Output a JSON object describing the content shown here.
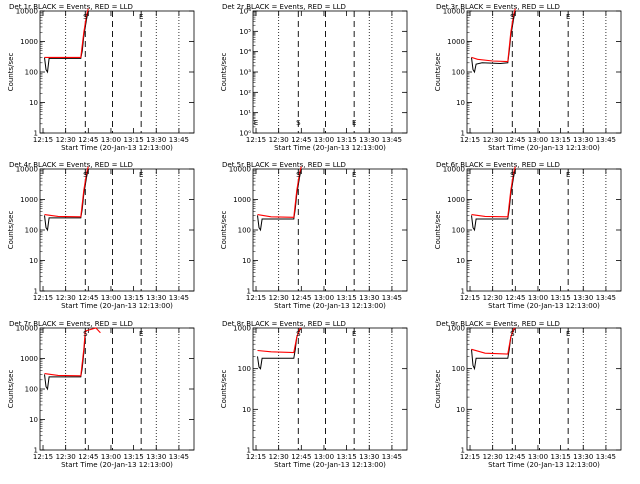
{
  "colors": {
    "events": "#000000",
    "lld": "#ff0000",
    "background": "#ffffff",
    "axes": "#000000"
  },
  "chart_data": [
    {
      "type": "line",
      "title": "Det 1r BLACK = Events, RED = LLD",
      "ylabel": "Counts/sec",
      "xlabel": "Start Time (20-Jan-13 12:13:00)",
      "yscale": "log",
      "ylim": [
        1,
        10000
      ],
      "yticklabels": [
        "1",
        "10",
        "100",
        "1000",
        "10000"
      ],
      "xlim": [
        "12:13",
        "13:55"
      ],
      "xticklabels": [
        "12:15",
        "12:30",
        "12:45",
        "13:00",
        "13:15",
        "13:30",
        "13:45"
      ],
      "markers": [
        "S",
        "E"
      ],
      "series": [
        {
          "x": [
            "12:16",
            "12:17",
            "12:18",
            "12:19",
            "12:35",
            "12:40",
            "12:41",
            "12:42",
            "12:44",
            "12:45"
          ],
          "values": [
            300,
            120,
            100,
            280,
            280,
            280,
            500,
            1500,
            6000,
            10000
          ]
        },
        {
          "x": [
            "12:16",
            "12:40",
            "12:42",
            "12:44",
            "12:45"
          ],
          "values": [
            300,
            300,
            2000,
            8000,
            12000
          ]
        }
      ]
    },
    {
      "type": "line",
      "title": "Det 2r BLACK = Events, RED = LLD",
      "ylabel": "Counts/sec",
      "xlabel": "Start Time (20-Jan-13 12:13:00)",
      "yscale": "log",
      "ylim": [
        1,
        1000000
      ],
      "yticklabels": [
        "10⁰",
        "10¹",
        "10²",
        "10³",
        "10⁴",
        "10⁵",
        "10⁶"
      ],
      "xlim": [
        "12:13",
        "13:55"
      ],
      "xticklabels": [
        "12:15",
        "12:30",
        "12:45",
        "13:00",
        "13:15",
        "13:30",
        "13:45"
      ],
      "markers": [
        "E",
        "S",
        "E"
      ],
      "series": []
    },
    {
      "type": "line",
      "title": "Det 3r BLACK = Events, RED = LLD",
      "ylabel": "Counts/sec",
      "xlabel": "Start Time (20-Jan-13 12:13:00)",
      "yscale": "log",
      "ylim": [
        1,
        10000
      ],
      "yticklabels": [
        "1",
        "10",
        "100",
        "1000",
        "10000"
      ],
      "xlim": [
        "12:13",
        "13:55"
      ],
      "xticklabels": [
        "12:15",
        "12:30",
        "12:45",
        "13:00",
        "13:15",
        "13:30",
        "13:45"
      ],
      "markers": [
        "S",
        "E"
      ],
      "series": [
        {
          "x": [
            "12:16",
            "12:17",
            "12:18",
            "12:19",
            "12:23",
            "12:35",
            "12:40",
            "12:41",
            "12:42",
            "12:44",
            "12:45"
          ],
          "values": [
            300,
            120,
            100,
            180,
            200,
            190,
            200,
            500,
            1500,
            6000,
            10000
          ]
        },
        {
          "x": [
            "12:16",
            "12:20",
            "12:30",
            "12:40",
            "12:42",
            "12:44",
            "12:45"
          ],
          "values": [
            300,
            260,
            230,
            220,
            2000,
            8000,
            12000
          ]
        }
      ]
    },
    {
      "type": "line",
      "title": "Det 4r BLACK = Events, RED = LLD",
      "ylabel": "Counts/sec",
      "xlabel": "Start Time (20-Jan-13 12:13:00)",
      "yscale": "log",
      "ylim": [
        1,
        10000
      ],
      "yticklabels": [
        "1",
        "10",
        "100",
        "1000",
        "10000"
      ],
      "xlim": [
        "12:13",
        "13:55"
      ],
      "xticklabels": [
        "12:15",
        "12:30",
        "12:45",
        "13:00",
        "13:15",
        "13:30",
        "13:45"
      ],
      "markers": [
        "S",
        "E"
      ],
      "series": [
        {
          "x": [
            "12:16",
            "12:17",
            "12:18",
            "12:19",
            "12:35",
            "12:40",
            "12:41",
            "12:42",
            "12:44",
            "12:45"
          ],
          "values": [
            300,
            120,
            100,
            250,
            250,
            250,
            500,
            1500,
            6000,
            10000
          ]
        },
        {
          "x": [
            "12:16",
            "12:25",
            "12:40",
            "12:42",
            "12:44",
            "12:45"
          ],
          "values": [
            320,
            280,
            270,
            2000,
            8000,
            12000
          ]
        }
      ]
    },
    {
      "type": "line",
      "title": "Det 5r BLACK = Events, RED = LLD",
      "ylabel": "Counts/sec",
      "xlabel": "Start Time (20-Jan-13 12:13:00)",
      "yscale": "log",
      "ylim": [
        1,
        10000
      ],
      "yticklabels": [
        "1",
        "10",
        "100",
        "1000",
        "10000"
      ],
      "xlim": [
        "12:13",
        "13:55"
      ],
      "xticklabels": [
        "12:15",
        "12:30",
        "12:45",
        "13:00",
        "13:15",
        "13:30",
        "13:45"
      ],
      "markers": [
        "S",
        "E"
      ],
      "series": [
        {
          "x": [
            "12:16",
            "12:17",
            "12:18",
            "12:19",
            "12:35",
            "12:40",
            "12:41",
            "12:42",
            "12:44",
            "12:45"
          ],
          "values": [
            300,
            120,
            100,
            230,
            230,
            230,
            500,
            1500,
            6000,
            10000
          ]
        },
        {
          "x": [
            "12:16",
            "12:25",
            "12:40",
            "12:42",
            "12:44",
            "12:45"
          ],
          "values": [
            320,
            270,
            260,
            2000,
            8000,
            12000
          ]
        }
      ]
    },
    {
      "type": "line",
      "title": "Det 6r BLACK = Events, RED = LLD",
      "ylabel": "Counts/sec",
      "xlabel": "Start Time (20-Jan-13 12:13:00)",
      "yscale": "log",
      "ylim": [
        1,
        10000
      ],
      "yticklabels": [
        "1",
        "10",
        "100",
        "1000",
        "10000"
      ],
      "xlim": [
        "12:13",
        "13:55"
      ],
      "xticklabels": [
        "12:15",
        "12:30",
        "12:45",
        "13:00",
        "13:15",
        "13:30",
        "13:45"
      ],
      "markers": [
        "S",
        "E"
      ],
      "series": [
        {
          "x": [
            "12:16",
            "12:17",
            "12:18",
            "12:19",
            "12:35",
            "12:40",
            "12:41",
            "12:42",
            "12:44",
            "12:45"
          ],
          "values": [
            300,
            120,
            100,
            230,
            230,
            230,
            500,
            1500,
            6000,
            10000
          ]
        },
        {
          "x": [
            "12:16",
            "12:25",
            "12:40",
            "12:42",
            "12:44",
            "12:45"
          ],
          "values": [
            320,
            280,
            270,
            2000,
            8000,
            12000
          ]
        }
      ]
    },
    {
      "type": "line",
      "title": "Det 7r BLACK = Events, RED = LLD",
      "ylabel": "Counts/sec",
      "xlabel": "Start Time (20-Jan-13 12:13:00)",
      "yscale": "log",
      "ylim": [
        1,
        10000
      ],
      "yticklabels": [
        "1",
        "10",
        "100",
        "1000",
        "10000"
      ],
      "xlim": [
        "12:13",
        "13:55"
      ],
      "xticklabels": [
        "12:15",
        "12:30",
        "12:45",
        "13:00",
        "13:15",
        "13:30",
        "13:45"
      ],
      "markers": [
        "S",
        "E"
      ],
      "series": [
        {
          "x": [
            "12:16",
            "12:17",
            "12:18",
            "12:19",
            "12:35",
            "12:40",
            "12:41",
            "12:42",
            "12:43"
          ],
          "values": [
            300,
            120,
            100,
            250,
            250,
            250,
            500,
            1500,
            6000
          ]
        },
        {
          "x": [
            "12:16",
            "12:25",
            "12:40",
            "12:42",
            "12:43",
            "12:50",
            "12:53"
          ],
          "values": [
            320,
            280,
            270,
            2000,
            8000,
            10000,
            7000
          ]
        }
      ]
    },
    {
      "type": "line",
      "title": "Det 8r BLACK = Events, RED = LLD",
      "ylabel": "Counts/sec",
      "xlabel": "Start Time (20-Jan-13 12:13:00)",
      "yscale": "log",
      "ylim": [
        1,
        1000
      ],
      "yticklabels": [
        "1",
        "10",
        "100",
        "1000"
      ],
      "xlim": [
        "12:13",
        "13:55"
      ],
      "xticklabels": [
        "12:15",
        "12:30",
        "12:45",
        "13:00",
        "13:15",
        "13:30",
        "13:45"
      ],
      "markers": [
        "S",
        "E"
      ],
      "series": [
        {
          "x": [
            "12:16",
            "12:17",
            "12:18",
            "12:19",
            "12:35",
            "12:40",
            "12:41",
            "12:42",
            "12:44",
            "12:45"
          ],
          "values": [
            200,
            110,
            100,
            180,
            180,
            180,
            300,
            600,
            900,
            1000
          ]
        },
        {
          "x": [
            "12:16",
            "12:25",
            "12:40",
            "12:42",
            "12:44",
            "12:45"
          ],
          "values": [
            280,
            260,
            250,
            600,
            950,
            1000
          ]
        }
      ]
    },
    {
      "type": "line",
      "title": "Det 9r BLACK = Events, RED = LLD",
      "ylabel": "Counts/sec",
      "xlabel": "Start Time (20-Jan-13 12:13:00)",
      "yscale": "log",
      "ylim": [
        1,
        1000
      ],
      "yticklabels": [
        "1",
        "10",
        "100",
        "1000"
      ],
      "xlim": [
        "12:13",
        "13:55"
      ],
      "xticklabels": [
        "12:15",
        "12:30",
        "12:45",
        "13:00",
        "13:15",
        "13:30",
        "13:45"
      ],
      "markers": [
        "S",
        "E"
      ],
      "series": [
        {
          "x": [
            "12:16",
            "12:17",
            "12:18",
            "12:19",
            "12:35",
            "12:40",
            "12:41",
            "12:42",
            "12:44",
            "12:45"
          ],
          "values": [
            300,
            120,
            100,
            180,
            180,
            180,
            300,
            600,
            900,
            1000
          ]
        },
        {
          "x": [
            "12:16",
            "12:25",
            "12:40",
            "12:42",
            "12:44",
            "12:45"
          ],
          "values": [
            300,
            240,
            230,
            600,
            950,
            1000
          ]
        }
      ]
    }
  ]
}
